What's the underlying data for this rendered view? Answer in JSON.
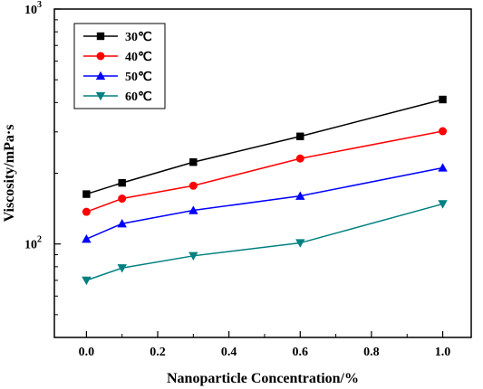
{
  "chart_data": {
    "type": "line",
    "xlabel": "Nanoparticle Concentration/%",
    "ylabel": "Viscosity/mPa·s",
    "yscale": "log",
    "xlim": [
      -0.09,
      1.08
    ],
    "ylim": [
      40,
      1000
    ],
    "x_ticks": [
      0.0,
      0.2,
      0.4,
      0.6,
      0.8,
      1.0
    ],
    "x_tick_labels": [
      "0.0",
      "0.2",
      "0.4",
      "0.6",
      "0.8",
      "1.0"
    ],
    "y_major_ticks": [
      {
        "value": 100,
        "base": "10",
        "exp": "2"
      },
      {
        "value": 1000,
        "base": "10",
        "exp": "3"
      }
    ],
    "legend_position": "top-left",
    "grid": false,
    "x": [
      0.0,
      0.1,
      0.3,
      0.6,
      1.0
    ],
    "series": [
      {
        "name": "30℃",
        "color": "#000000",
        "marker": "square",
        "values": [
          163,
          182,
          223,
          287,
          412
        ]
      },
      {
        "name": "40℃",
        "color": "#ff0000",
        "marker": "circle",
        "values": [
          137,
          156,
          177,
          231,
          302
        ]
      },
      {
        "name": "50℃",
        "color": "#0000ff",
        "marker": "triangle-up",
        "values": [
          105,
          122,
          139,
          160,
          211
        ]
      },
      {
        "name": "60℃",
        "color": "#008080",
        "marker": "triangle-down",
        "values": [
          70,
          79,
          89,
          101,
          148
        ]
      }
    ]
  }
}
